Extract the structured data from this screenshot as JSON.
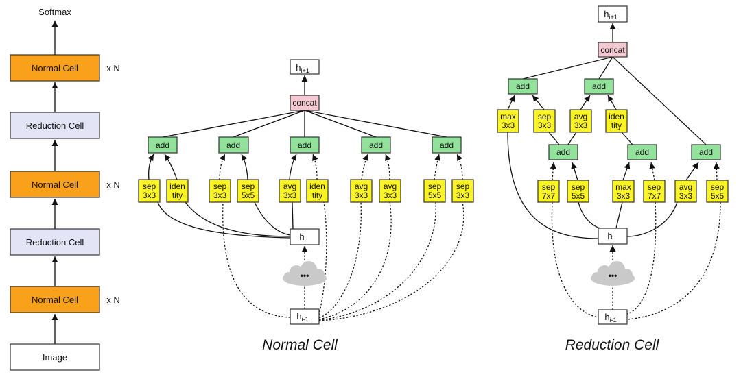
{
  "stack": {
    "softmax": "Softmax",
    "cells": [
      {
        "label": "Normal Cell",
        "repeat": "x N"
      },
      {
        "label": "Reduction Cell"
      },
      {
        "label": "Normal Cell",
        "repeat": "x N"
      },
      {
        "label": "Reduction Cell"
      },
      {
        "label": "Normal Cell",
        "repeat": "x N"
      }
    ],
    "input": "Image"
  },
  "nodes": {
    "h": "h",
    "next": "i+1",
    "cur": "i",
    "prev": "i-1",
    "concat": "concat",
    "add": "add",
    "cloud": "•••"
  },
  "normal_cell": {
    "title": "Normal Cell",
    "ops": [
      [
        "sep",
        "3x3"
      ],
      [
        "iden",
        "tity"
      ],
      [
        "sep",
        "3x3"
      ],
      [
        "sep",
        "5x5"
      ],
      [
        "avg",
        "3x3"
      ],
      [
        "iden",
        "tity"
      ],
      [
        "avg",
        "3x3"
      ],
      [
        "avg",
        "3x3"
      ],
      [
        "sep",
        "5x5"
      ],
      [
        "sep",
        "3x3"
      ]
    ]
  },
  "reduction_cell": {
    "title": "Reduction Cell",
    "ops_top": [
      [
        "max",
        "3x3"
      ],
      [
        "sep",
        "3x3"
      ],
      [
        "avg",
        "3x3"
      ],
      [
        "iden",
        "tity"
      ]
    ],
    "ops_bottom": [
      [
        "sep",
        "7x7"
      ],
      [
        "sep",
        "5x5"
      ],
      [
        "max",
        "3x3"
      ],
      [
        "sep",
        "7x7"
      ],
      [
        "avg",
        "3x3"
      ],
      [
        "sep",
        "5x5"
      ]
    ]
  },
  "colors": {
    "normal": "#f9a11b",
    "reduction": "#e4e4f7",
    "add": "#92e29c",
    "op": "#fbf425",
    "concat": "#f5c9d2",
    "cloud": "#c9c9c9"
  }
}
